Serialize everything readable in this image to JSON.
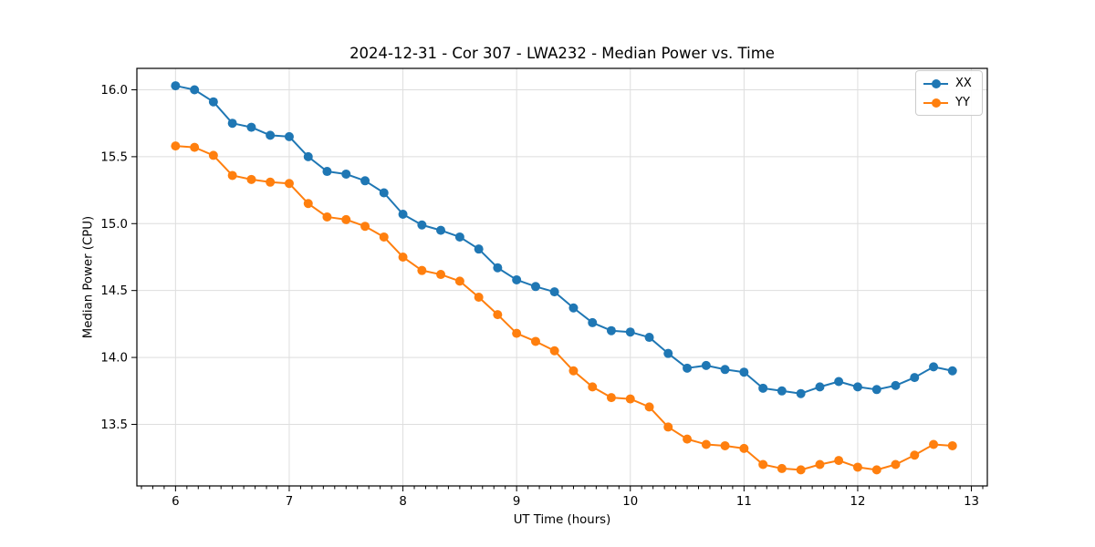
{
  "figure": {
    "title": "2024-12-31 - Cor 307 - LWA232 - Median Power vs. Time"
  },
  "chart_data": {
    "type": "line",
    "title": "2024-12-31 - Cor 307 - LWA232 - Median Power vs. Time",
    "xlabel": "UT Time (hours)",
    "ylabel": "Median Power (CPU)",
    "x": [
      6.0,
      6.167,
      6.333,
      6.5,
      6.667,
      6.833,
      7.0,
      7.167,
      7.333,
      7.5,
      7.667,
      7.833,
      8.0,
      8.167,
      8.333,
      8.5,
      8.667,
      8.833,
      9.0,
      9.167,
      9.333,
      9.5,
      9.667,
      9.833,
      10.0,
      10.167,
      10.333,
      10.5,
      10.667,
      10.833,
      11.0,
      11.167,
      11.333,
      11.5,
      11.667,
      11.833,
      12.0,
      12.167,
      12.333,
      12.5,
      12.667,
      12.833
    ],
    "series": [
      {
        "name": "XX",
        "color": "#1f77b4",
        "values": [
          16.03,
          16.0,
          15.91,
          15.75,
          15.72,
          15.66,
          15.65,
          15.5,
          15.39,
          15.37,
          15.32,
          15.23,
          15.07,
          14.99,
          14.95,
          14.9,
          14.81,
          14.67,
          14.58,
          14.53,
          14.49,
          14.37,
          14.26,
          14.2,
          14.19,
          14.15,
          14.03,
          13.92,
          13.94,
          13.91,
          13.89,
          13.77,
          13.75,
          13.73,
          13.78,
          13.82,
          13.78,
          13.76,
          13.79,
          13.85,
          13.93,
          13.9
        ]
      },
      {
        "name": "YY",
        "color": "#ff7f0e",
        "values": [
          15.58,
          15.57,
          15.51,
          15.36,
          15.33,
          15.31,
          15.3,
          15.15,
          15.05,
          15.03,
          14.98,
          14.9,
          14.75,
          14.65,
          14.62,
          14.57,
          14.45,
          14.32,
          14.18,
          14.12,
          14.05,
          13.9,
          13.78,
          13.7,
          13.69,
          13.63,
          13.48,
          13.39,
          13.35,
          13.34,
          13.32,
          13.2,
          13.17,
          13.16,
          13.2,
          13.23,
          13.18,
          13.16,
          13.2,
          13.27,
          13.35,
          13.34
        ]
      }
    ],
    "xlim": [
      5.66,
      13.14
    ],
    "ylim": [
      13.04,
      16.16
    ],
    "xticks": [
      6,
      7,
      8,
      9,
      10,
      11,
      12,
      13
    ],
    "yticks": [
      13.5,
      14.0,
      14.5,
      15.0,
      15.5,
      16.0
    ],
    "x_minor_step": 0.1,
    "grid": true,
    "grid_color": "#dedede",
    "legend_position": "upper right",
    "marker": "o",
    "line_width": 2,
    "marker_radius": 5
  }
}
